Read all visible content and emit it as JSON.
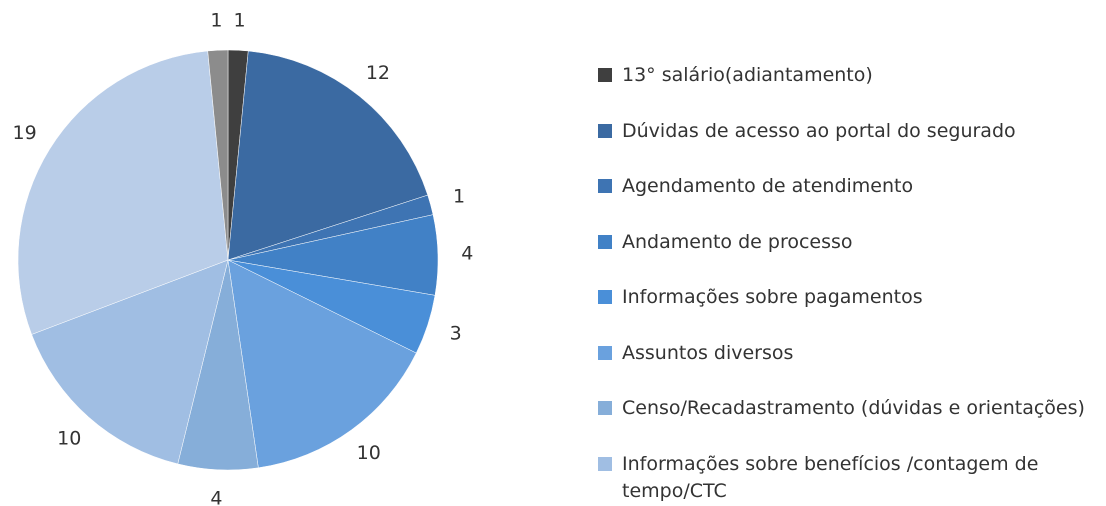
{
  "chart_data": {
    "type": "pie",
    "categories": [
      "13° salário(adiantamento)",
      "Dúvidas de acesso ao portal do segurado",
      "Agendamento de atendimento",
      "Andamento de processo",
      "Informações sobre pagamentos",
      "Assuntos diversos",
      "Censo/Recadastramento (dúvidas e orientações)",
      "Informações sobre benefícios /contagem de tempo/CTC",
      null,
      null
    ],
    "values": [
      1,
      12,
      1,
      4,
      3,
      10,
      4,
      10,
      19,
      1
    ],
    "colors": [
      "#3f3f3f",
      "#3b6aa2",
      "#3e74b3",
      "#4181c6",
      "#4a8fd8",
      "#6aa1de",
      "#86aed9",
      "#a0bee3",
      "#b9cde8",
      "#8c8c8c"
    ],
    "legend": "right"
  }
}
